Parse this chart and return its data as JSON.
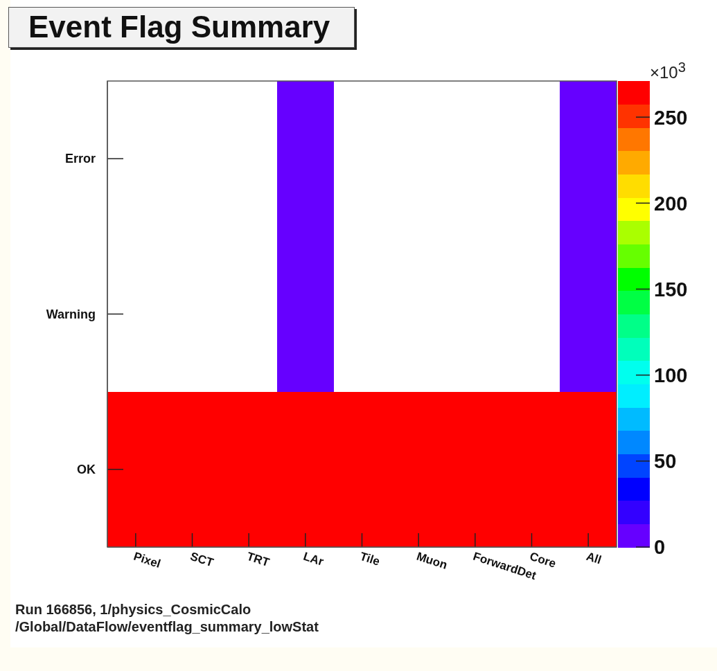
{
  "chart_data": {
    "type": "heatmap",
    "title": "Event Flag Summary",
    "categories": [
      "Pixel",
      "SCT",
      "TRT",
      "LAr",
      "Tile",
      "Muon",
      "ForwardDet",
      "Core",
      "All"
    ],
    "y_categories": [
      "Error",
      "Warning",
      "OK"
    ],
    "cells": [
      [
        null,
        null,
        null,
        5,
        null,
        null,
        null,
        null,
        5
      ],
      [
        null,
        null,
        null,
        5,
        null,
        null,
        null,
        null,
        5
      ],
      [
        270,
        270,
        270,
        270,
        270,
        270,
        270,
        270,
        270
      ]
    ],
    "clim": [
      0,
      271
    ],
    "cticks": [
      0,
      50,
      100,
      150,
      200,
      250
    ],
    "clabel": "×10$^{3}$",
    "annotations": [
      "Run 166856, 1/physics_CosmicCalo",
      "/Global/DataFlow/eventflag_summary_lowStat"
    ]
  }
}
